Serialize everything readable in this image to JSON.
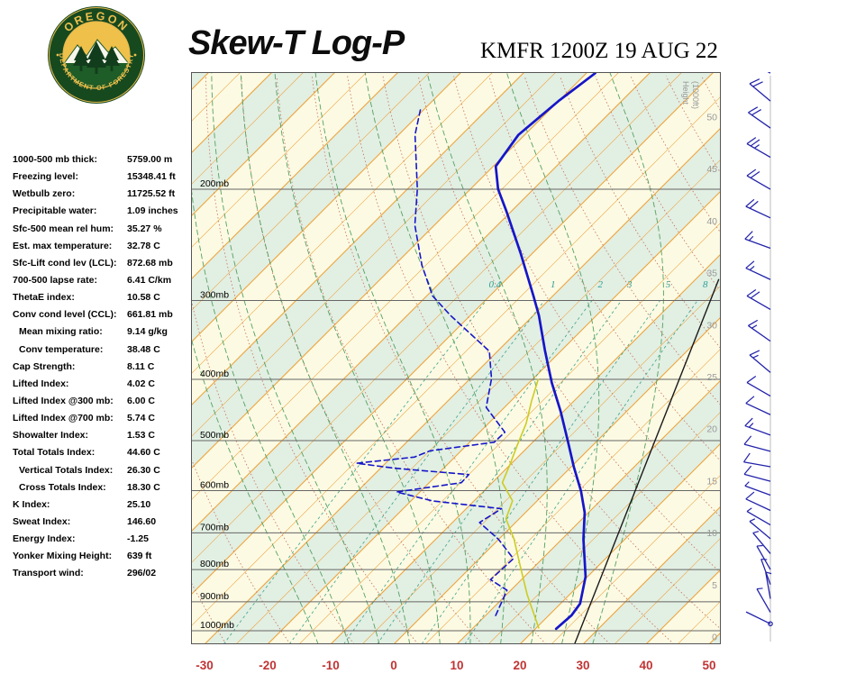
{
  "header": {
    "title": "Skew-T Log-P",
    "station": "KMFR 1200Z 19 AUG 22",
    "logo_text_top": "OREGON",
    "logo_text_bottom": "DEPARTMENT OF FORESTRY"
  },
  "indices": [
    {
      "label": "1000-500 mb thick:",
      "value": "5759.00 m"
    },
    {
      "label": "Freezing level:",
      "value": "15348.41 ft"
    },
    {
      "label": "Wetbulb zero:",
      "value": "11725.52 ft"
    },
    {
      "label": "Precipitable water:",
      "value": "1.09 inches"
    },
    {
      "label": "Sfc-500 mean rel hum:",
      "value": "35.27 %"
    },
    {
      "label": "Est. max temperature:",
      "value": "32.78 C"
    },
    {
      "label": "Sfc-Lift cond lev (LCL):",
      "value": "872.68 mb"
    },
    {
      "label": "700-500 lapse rate:",
      "value": "6.41 C/km"
    },
    {
      "label": "ThetaE index:",
      "value": "10.58 C"
    },
    {
      "label": "Conv cond level (CCL):",
      "value": "661.81 mb"
    },
    {
      "label": "Mean mixing ratio:",
      "value": "9.14 g/kg",
      "indent": true
    },
    {
      "label": "Conv temperature:",
      "value": "38.48 C",
      "indent": true
    },
    {
      "label": "Cap Strength:",
      "value": "8.11 C"
    },
    {
      "label": "Lifted Index:",
      "value": "4.02 C"
    },
    {
      "label": "Lifted Index @300 mb:",
      "value": "6.00 C"
    },
    {
      "label": "Lifted Index @700 mb:",
      "value": "5.74 C"
    },
    {
      "label": "Showalter Index:",
      "value": "1.53 C"
    },
    {
      "label": "Total Totals Index:",
      "value": "44.60 C"
    },
    {
      "label": "Vertical Totals Index:",
      "value": "26.30 C",
      "indent": true
    },
    {
      "label": "Cross Totals Index:",
      "value": "18.30 C",
      "indent": true
    },
    {
      "label": "K Index:",
      "value": "25.10"
    },
    {
      "label": "Sweat Index:",
      "value": "146.60"
    },
    {
      "label": "Energy Index:",
      "value": "-1.25"
    },
    {
      "label": "Yonker Mixing Height:",
      "value": "639 ft"
    },
    {
      "label": "Transport wind:",
      "value": "296/02"
    }
  ],
  "chart_data": {
    "type": "line",
    "diagram": "skew-t-log-p",
    "title": "Skew-T Log-P",
    "subtitle": "KMFR 1200Z 19 AUG 22",
    "x_axis": {
      "ticks": [
        -30,
        -20,
        -10,
        0,
        10,
        20,
        30,
        40,
        50
      ]
    },
    "pressure_ticks_mb": [
      200,
      300,
      400,
      500,
      600,
      700,
      800,
      900,
      1000
    ],
    "height_axis": {
      "label": "Height (1000ft)",
      "ticks": [
        50,
        45,
        40,
        35,
        30,
        25,
        20,
        15,
        10,
        5,
        0
      ]
    },
    "mixing_ratio_lines_gkg": [
      0.4,
      1,
      2,
      3,
      5,
      8
    ],
    "series": [
      {
        "name": "parcel-reference",
        "style": "solid",
        "color": "#1A1A1A",
        "points": [
          [
            1048,
            28.6
          ],
          [
            278,
            -6.3
          ]
        ]
      },
      {
        "name": "wetbulb",
        "style": "solid",
        "color": "#CCCC22",
        "points": [
          [
            990,
            20.4
          ],
          [
            877,
            13.3
          ],
          [
            789,
            7.6
          ],
          [
            716,
            2.4
          ],
          [
            665,
            -2.1
          ],
          [
            623,
            -3.9
          ],
          [
            583,
            -8.4
          ],
          [
            545,
            -10.1
          ],
          [
            508,
            -12.0
          ],
          [
            470,
            -14.0
          ],
          [
            433,
            -16.7
          ],
          [
            400,
            -19.1
          ]
        ]
      },
      {
        "name": "dewpoint",
        "style": "dashed",
        "color": "#1616C8",
        "points": [
          [
            946,
            11.6
          ],
          [
            863,
            9.4
          ],
          [
            830,
            5.1
          ],
          [
            769,
            5.4
          ],
          [
            716,
            -0.1
          ],
          [
            674,
            -5.7
          ],
          [
            641,
            -4.4
          ],
          [
            623,
            -16.6
          ],
          [
            603,
            -23.7
          ],
          [
            583,
            -14.9
          ],
          [
            566,
            -15.0
          ],
          [
            553,
            -27.7
          ],
          [
            543,
            -34.6
          ],
          [
            531,
            -26.4
          ],
          [
            519,
            -24.9
          ],
          [
            503,
            -16.1
          ],
          [
            485,
            -16.0
          ],
          [
            443,
            -22.9
          ],
          [
            399,
            -26.6
          ],
          [
            361,
            -31.3
          ],
          [
            317,
            -43.1
          ],
          [
            295,
            -49.1
          ],
          [
            264,
            -55.6
          ],
          [
            228,
            -63.1
          ],
          [
            200,
            -68.4
          ],
          [
            164,
            -77.4
          ],
          [
            148,
            -80.9
          ]
        ]
      },
      {
        "name": "temperature",
        "style": "solid",
        "color": "#1616C8",
        "points": [
          [
            993,
            23.3
          ],
          [
            945,
            23.6
          ],
          [
            906,
            23.1
          ],
          [
            821,
            19.7
          ],
          [
            716,
            13.4
          ],
          [
            650,
            9.4
          ],
          [
            601,
            5.4
          ],
          [
            550,
            0.4
          ],
          [
            501,
            -4.6
          ],
          [
            450,
            -10.4
          ],
          [
            405,
            -16.4
          ],
          [
            360,
            -22.6
          ],
          [
            317,
            -29.1
          ],
          [
            295,
            -33.1
          ],
          [
            252,
            -42.0
          ],
          [
            217,
            -50.7
          ],
          [
            200,
            -55.6
          ],
          [
            184,
            -59.6
          ],
          [
            164,
            -61.0
          ],
          [
            145,
            -60.0
          ],
          [
            131,
            -58.6
          ]
        ]
      }
    ],
    "wind_barbs": [
      [
        131,
        300,
        15
      ],
      [
        145,
        310,
        20
      ],
      [
        160,
        305,
        20
      ],
      [
        178,
        300,
        25
      ],
      [
        200,
        300,
        20
      ],
      [
        222,
        295,
        20
      ],
      [
        248,
        290,
        15
      ],
      [
        278,
        295,
        15
      ],
      [
        310,
        300,
        20
      ],
      [
        348,
        305,
        15
      ],
      [
        390,
        310,
        15
      ],
      [
        425,
        300,
        10
      ],
      [
        455,
        295,
        10
      ],
      [
        490,
        290,
        15
      ],
      [
        520,
        285,
        10
      ],
      [
        550,
        280,
        10
      ],
      [
        580,
        285,
        10
      ],
      [
        610,
        290,
        5
      ],
      [
        645,
        295,
        10
      ],
      [
        680,
        300,
        5
      ],
      [
        715,
        310,
        5
      ],
      [
        755,
        320,
        5
      ],
      [
        800,
        330,
        5
      ],
      [
        845,
        340,
        5
      ],
      [
        890,
        350,
        5
      ],
      [
        935,
        330,
        3
      ],
      [
        975,
        296,
        2
      ]
    ],
    "colors": {
      "band_cream": "#FCFAE3",
      "band_green": "#E2EFE3",
      "isotherm": "#EDA33C",
      "dry_adiabat": "#C8705A",
      "moist_adiabat": "#55A061",
      "mixing_ratio": "#3BA389",
      "mixing_label": "#2E9E94",
      "pressure_line": "#666666",
      "height_label": "#999999",
      "axis_label": "#C03434",
      "barb": "#2222AA"
    }
  }
}
